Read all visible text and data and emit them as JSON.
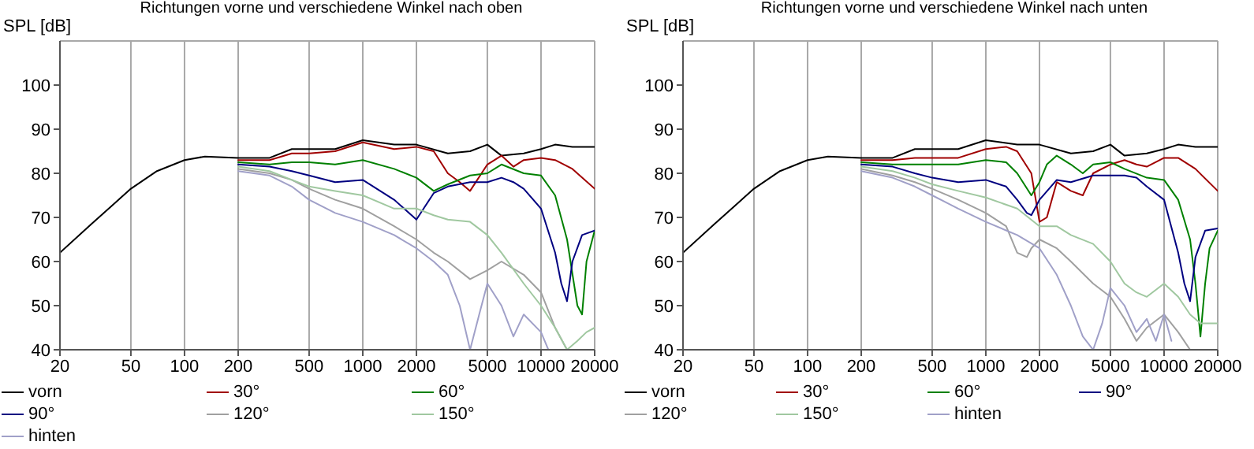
{
  "chart_data": [
    {
      "type": "line",
      "title": "Richtungen vorne und verschiedene Winkel nach oben",
      "ylabel": "SPL [dB]",
      "log": "x",
      "xlim": [
        20,
        20000
      ],
      "xticks": [
        20,
        50,
        100,
        200,
        500,
        1000,
        2000,
        5000,
        10000,
        20000
      ],
      "ylim": [
        40,
        110
      ],
      "yticks": [
        40,
        50,
        60,
        70,
        80,
        90,
        100
      ],
      "grid": true,
      "legend": "bottom",
      "marker": "none",
      "series": [
        {
          "name": "vorn",
          "color": "#000000",
          "x": [
            20,
            30,
            40,
            50,
            70,
            100,
            130,
            200,
            300,
            400,
            500,
            700,
            1000,
            1500,
            2000,
            3000,
            4000,
            5000,
            6000,
            8000,
            10000,
            12000,
            15000,
            20000
          ],
          "values": [
            62,
            68.5,
            73,
            76.5,
            80.5,
            83,
            83.8,
            83.5,
            83.5,
            85.5,
            85.5,
            85.5,
            87.5,
            86.5,
            86.5,
            84.5,
            85,
            86.5,
            84,
            84.5,
            85.5,
            86.5,
            86,
            86
          ]
        },
        {
          "name": "30°",
          "color": "#a00000",
          "x": [
            200,
            300,
            400,
            500,
            700,
            1000,
            1500,
            2000,
            2500,
            3000,
            3500,
            4000,
            5000,
            6000,
            7000,
            8000,
            10000,
            12000,
            15000,
            20000
          ],
          "values": [
            83,
            83,
            84.5,
            84.5,
            85,
            87,
            85.5,
            86,
            85,
            80,
            78,
            76,
            82,
            84,
            81.5,
            83,
            83.5,
            83,
            81,
            76.5
          ]
        },
        {
          "name": "60°",
          "color": "#008000",
          "x": [
            200,
            300,
            400,
            500,
            700,
            1000,
            1500,
            2000,
            2500,
            3000,
            4000,
            5000,
            6000,
            8000,
            10000,
            12000,
            14000,
            16000,
            17000,
            18000,
            20000
          ],
          "values": [
            82.5,
            82,
            82.5,
            82.5,
            82,
            83,
            81,
            79,
            76,
            77.5,
            79.5,
            80,
            82,
            80,
            79.5,
            75,
            65,
            50,
            48,
            60,
            67
          ]
        },
        {
          "name": "90°",
          "color": "#000080",
          "x": [
            200,
            300,
            400,
            500,
            700,
            1000,
            1500,
            2000,
            2500,
            3000,
            4000,
            5000,
            6000,
            7000,
            8000,
            10000,
            12000,
            13000,
            14000,
            15000,
            17000,
            20000
          ],
          "values": [
            82,
            81.5,
            80.5,
            79.5,
            78,
            78.5,
            74,
            69.5,
            75.5,
            77,
            78,
            78,
            79,
            78,
            76.5,
            72,
            62,
            55,
            51,
            60,
            66,
            67
          ]
        },
        {
          "name": "120°",
          "color": "#a0a0a0",
          "x": [
            200,
            300,
            400,
            500,
            700,
            1000,
            1500,
            2000,
            2500,
            3000,
            4000,
            5000,
            6000,
            8000,
            10000,
            12000,
            14000
          ],
          "values": [
            81,
            80,
            78.5,
            76.5,
            74,
            72,
            68,
            65,
            62,
            60,
            56,
            58,
            60,
            57,
            53,
            45,
            40
          ]
        },
        {
          "name": "150°",
          "color": "#a0c8a0",
          "x": [
            200,
            300,
            400,
            500,
            700,
            1000,
            1500,
            2000,
            2500,
            3000,
            4000,
            5000,
            6000,
            8000,
            10000,
            12000,
            14000,
            16000,
            18000,
            20000
          ],
          "values": [
            81.5,
            80.5,
            78.5,
            77,
            76,
            75,
            72,
            72,
            70.5,
            69.5,
            69,
            66,
            62,
            55,
            50,
            45,
            40,
            42,
            44,
            45
          ]
        },
        {
          "name": "hinten",
          "color": "#a0a0c8",
          "x": [
            200,
            300,
            400,
            500,
            700,
            1000,
            1500,
            2000,
            2500,
            3000,
            3500,
            4000,
            4500,
            5000,
            6000,
            7000,
            8000,
            10000,
            11000
          ],
          "values": [
            80.5,
            79.5,
            77,
            74,
            71,
            69,
            66,
            63,
            60,
            57,
            50,
            40,
            48,
            55,
            50,
            43,
            48,
            44,
            40
          ]
        }
      ]
    },
    {
      "type": "line",
      "title": "Richtungen vorne und verschiedene Winkel nach unten",
      "ylabel": "SPL [dB]",
      "log": "x",
      "xlim": [
        20,
        20000
      ],
      "xticks": [
        20,
        50,
        100,
        200,
        500,
        1000,
        2000,
        5000,
        10000,
        20000
      ],
      "ylim": [
        40,
        110
      ],
      "yticks": [
        40,
        50,
        60,
        70,
        80,
        90,
        100
      ],
      "grid": true,
      "legend": "bottom",
      "marker": "none",
      "series": [
        {
          "name": "vorn",
          "color": "#000000",
          "x": [
            20,
            30,
            40,
            50,
            70,
            100,
            130,
            200,
            300,
            400,
            500,
            700,
            1000,
            1500,
            2000,
            3000,
            4000,
            5000,
            6000,
            8000,
            10000,
            12000,
            15000,
            20000
          ],
          "values": [
            62,
            68.5,
            73,
            76.5,
            80.5,
            83,
            83.8,
            83.5,
            83.5,
            85.5,
            85.5,
            85.5,
            87.5,
            86.5,
            86.5,
            84.5,
            85,
            86.5,
            84,
            84.5,
            85.5,
            86.5,
            86,
            86
          ]
        },
        {
          "name": "30°",
          "color": "#a00000",
          "x": [
            200,
            300,
            400,
            500,
            700,
            1000,
            1300,
            1500,
            1800,
            2000,
            2200,
            2500,
            3000,
            3500,
            4000,
            5000,
            6000,
            7000,
            8000,
            10000,
            12000,
            15000,
            20000
          ],
          "values": [
            83,
            83,
            83.5,
            83.5,
            83.5,
            85.5,
            86,
            85,
            80,
            69,
            70,
            78,
            76,
            75,
            80,
            82,
            83,
            82,
            81.5,
            83.5,
            83.5,
            81,
            76
          ]
        },
        {
          "name": "60°",
          "color": "#008000",
          "x": [
            200,
            300,
            400,
            500,
            700,
            1000,
            1300,
            1500,
            1800,
            2000,
            2200,
            2500,
            3000,
            3500,
            4000,
            5000,
            6000,
            8000,
            10000,
            12000,
            14000,
            15000,
            16000,
            17000,
            18000,
            20000
          ],
          "values": [
            82.5,
            82,
            82,
            82,
            82,
            83,
            82.5,
            80,
            75,
            78,
            82,
            84,
            82,
            80,
            82,
            82.5,
            81,
            79,
            78.5,
            74,
            65,
            55,
            43,
            55,
            63,
            67
          ]
        },
        {
          "name": "90°",
          "color": "#000080",
          "x": [
            200,
            300,
            400,
            500,
            700,
            1000,
            1300,
            1500,
            1700,
            1800,
            2000,
            2500,
            3000,
            4000,
            5000,
            6000,
            7000,
            8000,
            10000,
            12000,
            13000,
            14000,
            15000,
            17000,
            20000
          ],
          "values": [
            82,
            81.5,
            80,
            79,
            78,
            78.5,
            77,
            74,
            71,
            70.5,
            74,
            78.5,
            78,
            79.5,
            79.5,
            79.5,
            79,
            77,
            74,
            62,
            55,
            51,
            61,
            67,
            67.5
          ]
        },
        {
          "name": "120°",
          "color": "#a0a0a0",
          "x": [
            200,
            300,
            400,
            500,
            700,
            1000,
            1300,
            1500,
            1700,
            1800,
            2000,
            2500,
            3000,
            4000,
            5000,
            6000,
            7000,
            8000,
            10000,
            12000,
            14000
          ],
          "values": [
            81,
            79.5,
            78,
            76.5,
            74,
            71,
            68,
            62,
            61,
            63,
            65,
            63,
            60,
            55,
            52,
            47,
            42,
            45,
            48,
            44,
            40
          ]
        },
        {
          "name": "150°",
          "color": "#a0c8a0",
          "x": [
            200,
            300,
            400,
            500,
            700,
            1000,
            1500,
            2000,
            2500,
            3000,
            4000,
            5000,
            6000,
            7000,
            8000,
            10000,
            12000,
            14000,
            16000,
            20000
          ],
          "values": [
            81.5,
            80.5,
            79,
            77.5,
            76,
            74.5,
            72,
            68,
            68,
            66,
            64,
            60,
            55,
            53,
            52,
            55,
            52,
            48,
            46,
            46
          ]
        },
        {
          "name": "hinten",
          "color": "#a0a0c8",
          "x": [
            200,
            300,
            400,
            500,
            700,
            1000,
            1500,
            2000,
            2500,
            3000,
            3500,
            4000,
            4500,
            5000,
            6000,
            7000,
            8000,
            9000,
            10000,
            11000
          ],
          "values": [
            80.5,
            79,
            77,
            75,
            72,
            69,
            66,
            63,
            57,
            50,
            43,
            40,
            46,
            54,
            50,
            44,
            47,
            42,
            48,
            42
          ]
        }
      ]
    }
  ]
}
